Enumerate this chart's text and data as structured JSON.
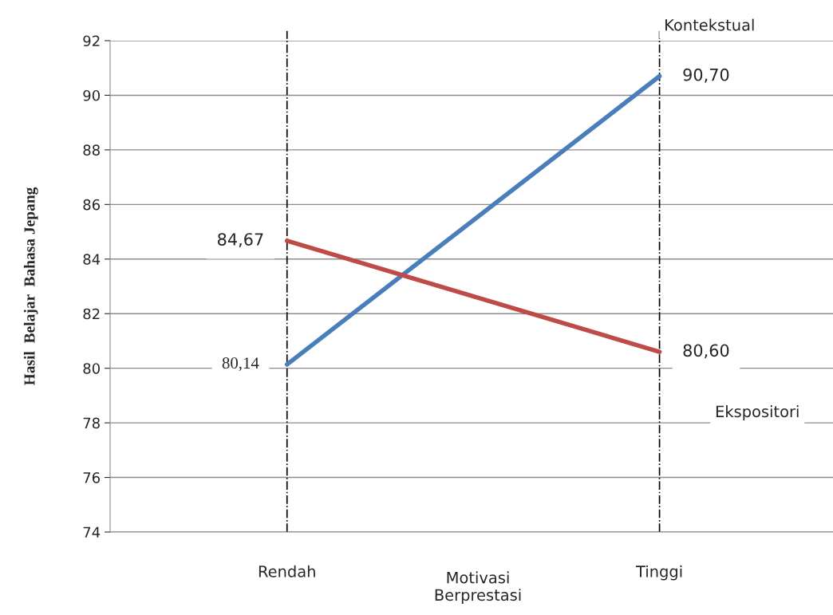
{
  "chart_data": {
    "type": "line",
    "categories": [
      "Rendah",
      "Tinggi"
    ],
    "xlabel": "Motivasi\nBerprestasi",
    "ylabel": "Hasil  Belajar  Bahasa Jepang",
    "ylim": [
      74,
      92
    ],
    "yticks": [
      74,
      76,
      78,
      80,
      82,
      84,
      86,
      88,
      90,
      92
    ],
    "grid": "y",
    "legend": false,
    "marker": "none",
    "line_style": "solid",
    "series": [
      {
        "name": "Kontekstual",
        "color": "#4a7ebb",
        "values": [
          80.14,
          90.7
        ],
        "value_labels": [
          "80,14",
          "90,70"
        ]
      },
      {
        "name": "Ekspositori",
        "color": "#be4b48",
        "values": [
          84.67,
          80.6
        ],
        "value_labels": [
          "84,67",
          "80,60"
        ]
      }
    ],
    "ref_lines": [
      {
        "axis": "x",
        "value": "Rendah",
        "line_style": "dashdot",
        "color": "#000000"
      },
      {
        "axis": "x",
        "value": "Tinggi",
        "line_style": "dashdot",
        "color": "#000000"
      }
    ]
  }
}
